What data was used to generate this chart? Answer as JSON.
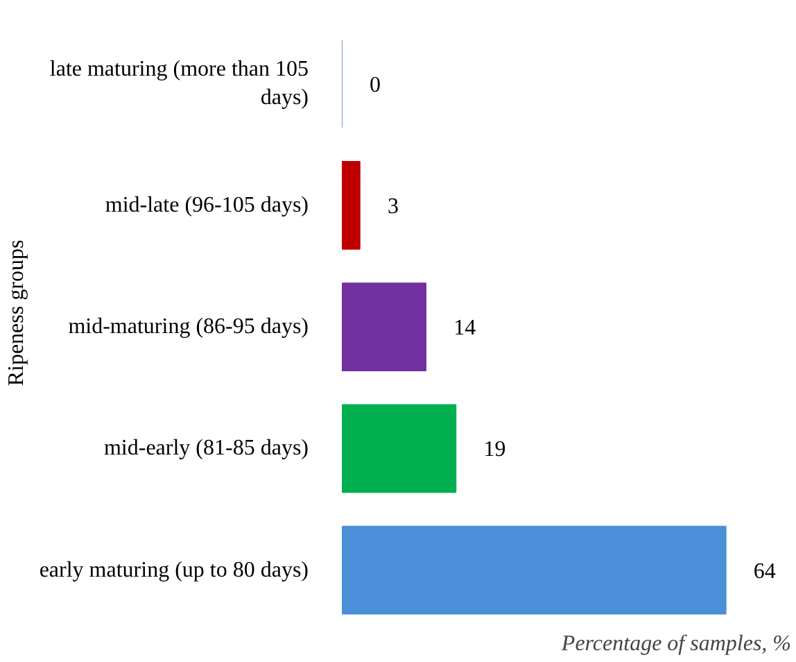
{
  "chart_data": {
    "type": "bar",
    "orientation": "horizontal",
    "ylabel": "Ripeness groups",
    "xlabel": "Percentage of samples, %",
    "categories": [
      "late maturing (more than 105 days)",
      "mid-late (96-105 days)",
      "mid-maturing (86-95 days)",
      "mid-early (81-85 days)",
      "early maturing (up to 80 days)"
    ],
    "values": [
      0,
      3,
      14,
      19,
      64
    ],
    "colors": [
      "#4f81bd",
      "#c00000",
      "#7030a0",
      "#00b050",
      "#4a8fd8"
    ],
    "data_labels": true
  }
}
